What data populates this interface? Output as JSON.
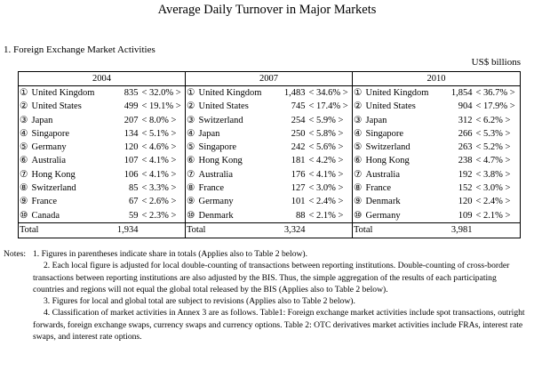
{
  "header": {
    "title": "Average Daily Turnover in Major Markets",
    "section": "1. Foreign Exchange Market Activities",
    "unit": "US$ billions"
  },
  "table": {
    "columns": [
      {
        "year": "2004",
        "rows": [
          {
            "rank": "①",
            "country": "United Kingdom",
            "value": "835",
            "share": "< 32.0% >"
          },
          {
            "rank": "②",
            "country": "United States",
            "value": "499",
            "share": "< 19.1% >"
          },
          {
            "rank": "③",
            "country": "Japan",
            "value": "207",
            "share": "< 8.0% >"
          },
          {
            "rank": "④",
            "country": "Singapore",
            "value": "134",
            "share": "< 5.1% >"
          },
          {
            "rank": "⑤",
            "country": "Germany",
            "value": "120",
            "share": "< 4.6% >"
          },
          {
            "rank": "⑥",
            "country": "Australia",
            "value": "107",
            "share": "< 4.1% >"
          },
          {
            "rank": "⑦",
            "country": "Hong Kong",
            "value": "106",
            "share": "< 4.1% >"
          },
          {
            "rank": "⑧",
            "country": "Switzerland",
            "value": "85",
            "share": "< 3.3% >"
          },
          {
            "rank": "⑨",
            "country": "France",
            "value": "67",
            "share": "< 2.6% >"
          },
          {
            "rank": "⑩",
            "country": "Canada",
            "value": "59",
            "share": "< 2.3% >"
          }
        ],
        "total_label": "Total",
        "total": "1,934"
      },
      {
        "year": "2007",
        "rows": [
          {
            "rank": "①",
            "country": "United Kingdom",
            "value": "1,483",
            "share": "< 34.6% >"
          },
          {
            "rank": "②",
            "country": "United States",
            "value": "745",
            "share": "< 17.4% >"
          },
          {
            "rank": "③",
            "country": "Switzerland",
            "value": "254",
            "share": "< 5.9% >"
          },
          {
            "rank": "④",
            "country": "Japan",
            "value": "250",
            "share": "< 5.8% >"
          },
          {
            "rank": "⑤",
            "country": "Singapore",
            "value": "242",
            "share": "< 5.6% >"
          },
          {
            "rank": "⑥",
            "country": "Hong Kong",
            "value": "181",
            "share": "< 4.2% >"
          },
          {
            "rank": "⑦",
            "country": "Australia",
            "value": "176",
            "share": "< 4.1% >"
          },
          {
            "rank": "⑧",
            "country": "France",
            "value": "127",
            "share": "< 3.0% >"
          },
          {
            "rank": "⑨",
            "country": "Germany",
            "value": "101",
            "share": "< 2.4% >"
          },
          {
            "rank": "⑩",
            "country": "Denmark",
            "value": "88",
            "share": "< 2.1% >"
          }
        ],
        "total_label": "Total",
        "total": "3,324"
      },
      {
        "year": "2010",
        "rows": [
          {
            "rank": "①",
            "country": "United Kingdom",
            "value": "1,854",
            "share": "< 36.7% >"
          },
          {
            "rank": "②",
            "country": "United States",
            "value": "904",
            "share": "< 17.9% >"
          },
          {
            "rank": "③",
            "country": "Japan",
            "value": "312",
            "share": "< 6.2% >"
          },
          {
            "rank": "④",
            "country": "Singapore",
            "value": "266",
            "share": "< 5.3% >"
          },
          {
            "rank": "⑤",
            "country": "Switzerland",
            "value": "263",
            "share": "< 5.2% >"
          },
          {
            "rank": "⑥",
            "country": "Hong Kong",
            "value": "238",
            "share": "< 4.7% >"
          },
          {
            "rank": "⑦",
            "country": "Australia",
            "value": "192",
            "share": "< 3.8% >"
          },
          {
            "rank": "⑧",
            "country": "France",
            "value": "152",
            "share": "< 3.0% >"
          },
          {
            "rank": "⑨",
            "country": "Denmark",
            "value": "120",
            "share": "< 2.4% >"
          },
          {
            "rank": "⑩",
            "country": "Germany",
            "value": "109",
            "share": "< 2.1% >"
          }
        ],
        "total_label": "Total",
        "total": "3,981"
      }
    ]
  },
  "notes": {
    "label": "Notes:",
    "items": [
      "1. Figures in parentheses indicate share in totals (Applies also to Table 2 below).",
      "2. Each local figure is adjusted for local double-counting of transactions between reporting institutions. Double-counting of cross-border transactions between reporting institutions are also adjusted by the BIS.  Thus, the simple aggregation of the results of each participating countries and regions will not equal the global total released by the BIS (Applies also to Table 2 below).",
      "3. Figures for local and global total are subject to revisions (Applies also to Table 2 below).",
      "4. Classification of market activities in Annex 3 are as follows. Table1: Foreign exchange market activities include spot transactions, outright forwards, foreign exchange swaps, currency swaps  and currency options. Table 2: OTC derivatives market activities include FRAs, interest rate swaps, and interest rate options."
    ]
  }
}
